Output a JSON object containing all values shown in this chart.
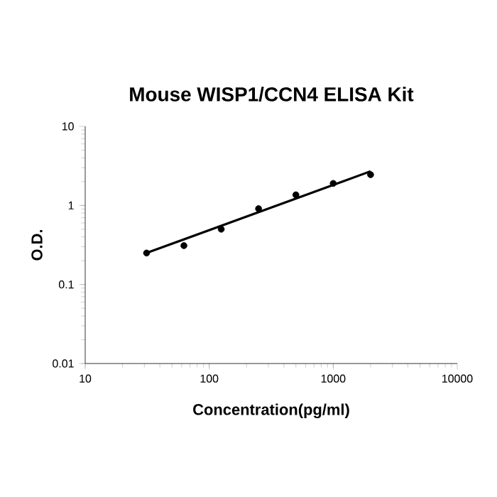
{
  "chart_data": {
    "type": "scatter",
    "title": "Mouse WISP1/CCN4 ELISA Kit",
    "xlabel": "Concentration(pg/ml)",
    "ylabel": "O.D.",
    "log": "xy",
    "grid": false,
    "xlim": [
      10,
      10000
    ],
    "xticks": [
      10,
      100,
      1000,
      10000
    ],
    "ylim": [
      0.01,
      10
    ],
    "yticks": [
      0.01,
      0.1,
      1,
      10
    ],
    "series": [
      {
        "color": "#000000",
        "marker": "circle",
        "x": [
          31.25,
          62.5,
          125,
          250,
          500,
          1000,
          2000
        ],
        "values": [
          0.25,
          0.31,
          0.5,
          0.91,
          1.36,
          1.9,
          2.45
        ]
      },
      {
        "type": "line",
        "color": "#000000",
        "line_style": "solid",
        "marker": "none",
        "x": [
          31.25,
          2000
        ],
        "values": [
          0.25,
          2.7
        ]
      }
    ]
  }
}
